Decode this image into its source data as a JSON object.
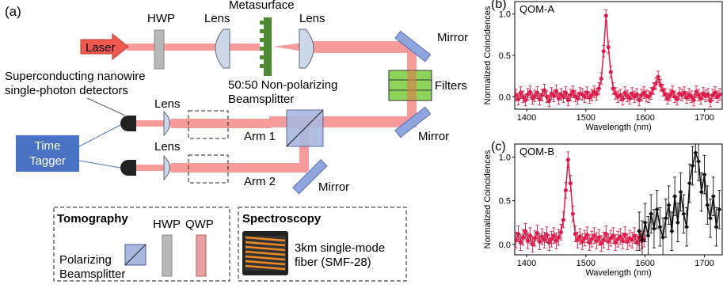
{
  "setup": {
    "panel_label": "(a)",
    "laser": "Laser",
    "hwp": "HWP",
    "lens": "Lens",
    "metasurface": "Metasurface",
    "mirror": "Mirror",
    "filters": "Filters",
    "bs_line1": "50:50 Non-polarizing",
    "bs_line2": "Beamsplitter",
    "snspd_line1": "Superconducting nanowire",
    "snspd_line2": "single-photon detectors",
    "arm1": "Arm 1",
    "arm2": "Arm 2",
    "tagger_line1": "Time",
    "tagger_line2": "Tagger"
  },
  "tomography": {
    "title": "Tomography",
    "pbs_line1": "Polarizing",
    "pbs_line2": "Beamsplitter",
    "hwp": "HWP",
    "qwp": "QWP"
  },
  "spectroscopy": {
    "title": "Spectroscopy",
    "fiber_line1": "3km single-mode",
    "fiber_line2": "fiber (SMF-28)"
  },
  "colors": {
    "beam": "#f47a7a",
    "laser": "#f15a50",
    "metasurface": "#4e8a2f",
    "mirror": "#8ea5de",
    "filters": "#8ed35a",
    "tagger": "#4a72c4",
    "plot_red": "#dc1e4b",
    "plot_black": "#111111"
  },
  "chart_data": [
    {
      "type": "line",
      "panel_label": "(b)",
      "title": "QOM-A",
      "xlabel": "Wavelength (nm)",
      "ylabel": "Normalized Coincidences",
      "xlim": [
        1380,
        1730
      ],
      "ylim": [
        -0.15,
        1.15
      ],
      "xticks": [
        "1400",
        "1500",
        "1600",
        "1700"
      ],
      "yticks": [
        "0.0",
        "0.5",
        "1.0"
      ],
      "series": [
        {
          "color": "#dc1e4b",
          "x": [
            1382,
            1386,
            1390,
            1394,
            1398,
            1402,
            1406,
            1410,
            1414,
            1418,
            1422,
            1426,
            1430,
            1434,
            1438,
            1442,
            1446,
            1450,
            1454,
            1458,
            1462,
            1466,
            1470,
            1474,
            1478,
            1482,
            1486,
            1490,
            1494,
            1498,
            1502,
            1506,
            1510,
            1514,
            1518,
            1522,
            1526,
            1530,
            1534,
            1538,
            1542,
            1546,
            1550,
            1554,
            1558,
            1562,
            1566,
            1570,
            1574,
            1578,
            1582,
            1586,
            1590,
            1594,
            1598,
            1602,
            1606,
            1610,
            1614,
            1618,
            1622,
            1626,
            1630,
            1634,
            1638,
            1642,
            1646,
            1650,
            1654,
            1658,
            1662,
            1666,
            1670,
            1674,
            1678,
            1682,
            1686,
            1690,
            1694,
            1698,
            1702,
            1706,
            1710,
            1714,
            1718,
            1722,
            1726
          ],
          "y": [
            0.02,
            -0.03,
            0.05,
            0.0,
            -0.04,
            0.03,
            0.06,
            -0.02,
            0.01,
            0.05,
            -0.03,
            0.02,
            0.08,
            0.0,
            -0.05,
            0.04,
            0.01,
            0.07,
            -0.02,
            0.03,
            0.0,
            0.05,
            -0.04,
            0.02,
            0.06,
            0.01,
            -0.02,
            0.04,
            0.03,
            0.0,
            0.05,
            -0.01,
            0.02,
            0.06,
            0.03,
            0.1,
            0.22,
            0.55,
            0.98,
            0.6,
            0.3,
            0.1,
            0.04,
            0.0,
            0.02,
            -0.03,
            0.05,
            0.01,
            -0.02,
            0.04,
            0.0,
            0.03,
            -0.04,
            0.02,
            0.05,
            0.01,
            0.0,
            0.04,
            0.1,
            0.16,
            0.24,
            0.14,
            0.08,
            0.03,
            -0.02,
            0.02,
            0.06,
            0.0,
            -0.03,
            0.04,
            0.02,
            0.05,
            -0.01,
            0.03,
            0.0,
            -0.04,
            0.06,
            0.02,
            -0.02,
            0.04,
            0.01,
            0.03,
            -0.05,
            0.02,
            0.05,
            0.0,
            0.03
          ],
          "err": 0.07
        }
      ]
    },
    {
      "type": "line",
      "panel_label": "(c)",
      "title": "QOM-B",
      "xlabel": "Wavelength (nm)",
      "ylabel": "Normalized Coincidences",
      "xlim": [
        1380,
        1730
      ],
      "ylim": [
        -0.12,
        1.15
      ],
      "xticks": [
        "1400",
        "1500",
        "1600",
        "1700"
      ],
      "yticks": [
        "0.0",
        "0.5",
        "1.0"
      ],
      "series": [
        {
          "color": "#dc1e4b",
          "x": [
            1382,
            1386,
            1390,
            1394,
            1398,
            1402,
            1406,
            1410,
            1414,
            1418,
            1422,
            1426,
            1430,
            1434,
            1438,
            1442,
            1446,
            1450,
            1454,
            1458,
            1462,
            1466,
            1470,
            1474,
            1478,
            1482,
            1486,
            1490,
            1494,
            1498,
            1502,
            1506,
            1510,
            1514,
            1518,
            1522,
            1526,
            1530,
            1534,
            1538,
            1542,
            1546,
            1550,
            1554,
            1558,
            1562,
            1566,
            1570,
            1574,
            1578,
            1582,
            1586,
            1590,
            1594,
            1598
          ],
          "y": [
            0.05,
            0.12,
            0.02,
            0.08,
            0.15,
            0.04,
            0.1,
            0.0,
            0.07,
            0.13,
            0.03,
            0.09,
            0.05,
            0.11,
            0.02,
            0.06,
            0.1,
            0.04,
            0.08,
            0.14,
            0.28,
            0.62,
            0.97,
            0.7,
            0.35,
            0.12,
            0.05,
            0.09,
            0.03,
            0.07,
            0.11,
            0.02,
            0.06,
            0.1,
            0.04,
            0.08,
            0.01,
            0.05,
            0.12,
            0.03,
            0.07,
            0.1,
            0.02,
            0.06,
            0.09,
            0.04,
            0.11,
            0.03,
            0.07,
            0.05,
            0.1,
            0.02,
            0.08,
            0.04,
            0.06
          ],
          "err": 0.09
        },
        {
          "color": "#111111",
          "x": [
            1590,
            1595,
            1600,
            1605,
            1610,
            1615,
            1620,
            1625,
            1630,
            1635,
            1640,
            1645,
            1650,
            1655,
            1660,
            1665,
            1670,
            1675,
            1680,
            1685,
            1690,
            1695,
            1700,
            1705,
            1710,
            1715,
            1720,
            1725
          ],
          "y": [
            0.15,
            0.05,
            0.25,
            0.1,
            0.35,
            0.18,
            0.4,
            0.2,
            0.08,
            0.3,
            0.45,
            0.15,
            0.55,
            0.25,
            0.6,
            0.35,
            0.2,
            0.7,
            0.9,
            1.05,
            0.95,
            0.6,
            0.8,
            0.45,
            0.3,
            0.55,
            0.2,
            0.4
          ],
          "err": 0.22
        }
      ]
    }
  ]
}
